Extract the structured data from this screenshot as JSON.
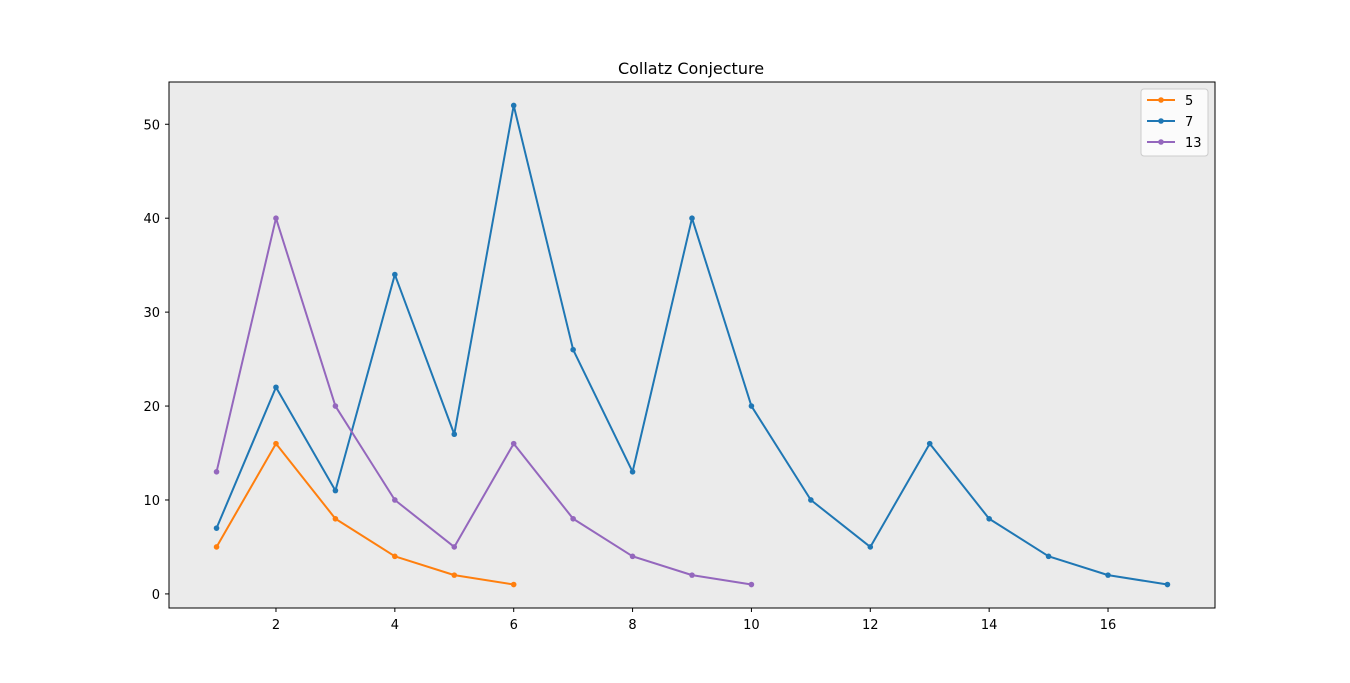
{
  "chart_data": {
    "type": "line",
    "title": "Collatz Conjecture",
    "xlabel": "",
    "ylabel": "",
    "xlim": [
      0.2,
      17.8
    ],
    "ylim": [
      -1.5,
      54.5
    ],
    "xticks": [
      2,
      4,
      6,
      8,
      10,
      12,
      14,
      16
    ],
    "yticks": [
      0,
      10,
      20,
      30,
      40,
      50
    ],
    "grid": false,
    "legend_position": "top-right",
    "plot_background": "#ebebeb",
    "series": [
      {
        "name": "5",
        "color": "#ff7f0e",
        "x": [
          1,
          2,
          3,
          4,
          5,
          6
        ],
        "y": [
          5,
          16,
          8,
          4,
          2,
          1
        ]
      },
      {
        "name": "7",
        "color": "#1f77b4",
        "x": [
          1,
          2,
          3,
          4,
          5,
          6,
          7,
          8,
          9,
          10,
          11,
          12,
          13,
          14,
          15,
          16,
          17
        ],
        "y": [
          7,
          22,
          11,
          34,
          17,
          52,
          26,
          13,
          40,
          20,
          10,
          5,
          16,
          8,
          4,
          2,
          1
        ]
      },
      {
        "name": "13",
        "color": "#9467bd",
        "x": [
          1,
          2,
          3,
          4,
          5,
          6,
          7,
          8,
          9,
          10
        ],
        "y": [
          13,
          40,
          20,
          10,
          5,
          16,
          8,
          4,
          2,
          1
        ]
      }
    ]
  }
}
